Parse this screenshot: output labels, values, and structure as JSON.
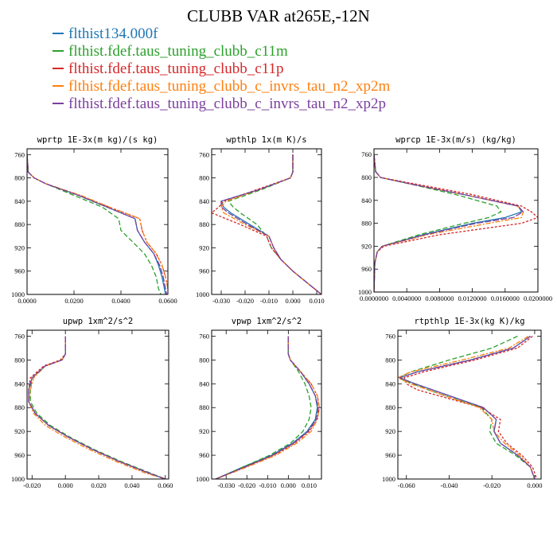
{
  "title": "CLUBB VAR at265E,-12N",
  "legend": [
    {
      "label": "flthist134.000f",
      "color": "#1f77b4"
    },
    {
      "label": "flthist.fdef.taus_tuning_clubb_c11m",
      "color": "#2ca02c"
    },
    {
      "label": "flthist.fdef.taus_tuning_clubb_c11p",
      "color": "#d62728"
    },
    {
      "label": "flthist.fdef.taus_tuning_clubb_c_invrs_tau_n2_xp2m",
      "color": "#ff7f0e"
    },
    {
      "label": "flthist.fdef.taus_tuning_clubb_c_invrs_tau_n2_xp2p",
      "color": "#7b3f9e"
    }
  ],
  "chart_data": [
    {
      "type": "line",
      "title": "wprtp  1E-3x(m kg)/(s kg)",
      "xlim": [
        0.0,
        0.06
      ],
      "ylim": [
        1000,
        750
      ],
      "xticks": [
        0.0,
        0.02,
        0.04,
        0.06
      ],
      "xtick_labels": [
        "0.0000",
        "0.0200",
        "0.0400",
        "0.0600"
      ],
      "yticks": [
        760,
        800,
        840,
        880,
        920,
        960,
        1000
      ],
      "y": [
        760,
        790,
        800,
        810,
        830,
        850,
        870,
        890,
        910,
        930,
        950,
        970,
        990,
        1000
      ],
      "series": [
        {
          "color": "#1f77b4",
          "x": [
            0.0,
            0.0005,
            0.003,
            0.008,
            0.022,
            0.034,
            0.046,
            0.047,
            0.05,
            0.054,
            0.056,
            0.0575,
            0.0585,
            0.059
          ]
        },
        {
          "color": "#2ca02c",
          "x": [
            0.0,
            0.0005,
            0.003,
            0.008,
            0.02,
            0.032,
            0.039,
            0.04,
            0.045,
            0.05,
            0.053,
            0.055,
            0.056,
            0.057
          ]
        },
        {
          "color": "#d62728",
          "x": [
            0.0,
            0.0005,
            0.003,
            0.008,
            0.022,
            0.035,
            0.048,
            0.049,
            0.051,
            0.055,
            0.0575,
            0.059,
            0.06,
            0.0605
          ]
        },
        {
          "color": "#ff7f0e",
          "x": [
            0.0,
            0.0005,
            0.003,
            0.008,
            0.023,
            0.035,
            0.048,
            0.049,
            0.051,
            0.055,
            0.0575,
            0.059,
            0.06,
            0.0605
          ]
        },
        {
          "color": "#7b3f9e",
          "x": [
            0.0,
            0.0005,
            0.003,
            0.008,
            0.022,
            0.034,
            0.046,
            0.047,
            0.05,
            0.054,
            0.0565,
            0.058,
            0.059,
            0.0595
          ]
        }
      ]
    },
    {
      "type": "line",
      "title": "wpthlp  1x(m K)/s",
      "xlim": [
        -0.034,
        0.012
      ],
      "ylim": [
        1000,
        750
      ],
      "xticks": [
        -0.03,
        -0.02,
        -0.01,
        0.0,
        0.01
      ],
      "xtick_labels": [
        "-0.030",
        "-0.020",
        "-0.010",
        "0.000",
        "0.010"
      ],
      "yticks": [
        760,
        800,
        840,
        880,
        920,
        960,
        1000
      ],
      "y": [
        760,
        790,
        800,
        820,
        840,
        850,
        860,
        880,
        900,
        920,
        940,
        960,
        980,
        1000
      ],
      "series": [
        {
          "color": "#1f77b4",
          "x": [
            0.0,
            0.0,
            -0.001,
            -0.014,
            -0.03,
            -0.029,
            -0.026,
            -0.018,
            -0.01,
            -0.008,
            -0.005,
            0.0,
            0.006,
            0.012
          ]
        },
        {
          "color": "#2ca02c",
          "x": [
            0.0,
            0.0,
            -0.001,
            -0.013,
            -0.027,
            -0.025,
            -0.022,
            -0.015,
            -0.011,
            -0.009,
            -0.005,
            0.0,
            0.006,
            0.012
          ]
        },
        {
          "color": "#d62728",
          "x": [
            0.0,
            0.0,
            -0.001,
            -0.015,
            -0.029,
            -0.031,
            -0.034,
            -0.022,
            -0.011,
            -0.009,
            -0.005,
            0.0,
            0.006,
            0.012
          ]
        },
        {
          "color": "#ff7f0e",
          "x": [
            0.0,
            0.0,
            -0.001,
            -0.014,
            -0.028,
            -0.03,
            -0.029,
            -0.02,
            -0.01,
            -0.008,
            -0.005,
            0.0,
            0.006,
            0.012
          ]
        },
        {
          "color": "#7b3f9e",
          "x": [
            0.0,
            0.0,
            -0.001,
            -0.014,
            -0.03,
            -0.03,
            -0.027,
            -0.019,
            -0.01,
            -0.008,
            -0.005,
            0.0,
            0.006,
            0.012
          ]
        }
      ]
    },
    {
      "type": "line",
      "title": "wprcp  1E-3x(m/s) (kg/kg)",
      "xlim": [
        0.0,
        0.02
      ],
      "ylim": [
        1000,
        750
      ],
      "xticks": [
        0.0,
        0.004,
        0.008,
        0.012,
        0.016,
        0.02
      ],
      "xtick_labels": [
        "0.0000000",
        "0.0040000",
        "0.0080000",
        "0.0120000",
        "0.0160000",
        "0.0200000"
      ],
      "yticks": [
        760,
        800,
        840,
        880,
        920,
        960,
        1000
      ],
      "y": [
        760,
        790,
        800,
        810,
        830,
        850,
        860,
        870,
        880,
        900,
        920,
        930,
        950,
        1000
      ],
      "series": [
        {
          "color": "#1f77b4",
          "x": [
            0.0,
            0.0002,
            0.0008,
            0.004,
            0.011,
            0.0176,
            0.018,
            0.016,
            0.012,
            0.006,
            0.001,
            0.0004,
            0.0001,
            0.0
          ]
        },
        {
          "color": "#2ca02c",
          "x": [
            0.0,
            0.0002,
            0.0008,
            0.004,
            0.01,
            0.015,
            0.0155,
            0.014,
            0.011,
            0.0055,
            0.001,
            0.0004,
            0.0001,
            0.0
          ]
        },
        {
          "color": "#d62728",
          "x": [
            0.0,
            0.0002,
            0.0008,
            0.0045,
            0.012,
            0.018,
            0.0192,
            0.02,
            0.018,
            0.008,
            0.0012,
            0.0004,
            0.0001,
            0.0
          ]
        },
        {
          "color": "#ff7f0e",
          "x": [
            0.0,
            0.0002,
            0.0008,
            0.004,
            0.011,
            0.0175,
            0.0182,
            0.018,
            0.014,
            0.0065,
            0.0011,
            0.0004,
            0.0001,
            0.0
          ]
        },
        {
          "color": "#7b3f9e",
          "x": [
            0.0,
            0.0002,
            0.0008,
            0.004,
            0.011,
            0.0176,
            0.0182,
            0.017,
            0.0125,
            0.0062,
            0.001,
            0.0004,
            0.0001,
            0.0
          ]
        }
      ]
    },
    {
      "type": "line",
      "title": "upwp  1xm^2/s^2",
      "xlim": [
        -0.023,
        0.062
      ],
      "ylim": [
        1000,
        750
      ],
      "xticks": [
        -0.02,
        0.0,
        0.02,
        0.04,
        0.06
      ],
      "xtick_labels": [
        "-0.020",
        "0.000",
        "0.020",
        "0.040",
        "0.060"
      ],
      "yticks": [
        760,
        800,
        840,
        880,
        920,
        960,
        1000
      ],
      "y": [
        760,
        790,
        800,
        810,
        830,
        850,
        870,
        890,
        910,
        930,
        950,
        970,
        990,
        1000
      ],
      "series": [
        {
          "color": "#1f77b4",
          "x": [
            0.0,
            0.0,
            -0.002,
            -0.012,
            -0.02,
            -0.022,
            -0.022,
            -0.018,
            -0.01,
            0.002,
            0.016,
            0.032,
            0.05,
            0.06
          ]
        },
        {
          "color": "#2ca02c",
          "x": [
            0.0,
            0.0,
            -0.002,
            -0.012,
            -0.02,
            -0.021,
            -0.021,
            -0.017,
            -0.009,
            0.003,
            0.017,
            0.033,
            0.051,
            0.06
          ]
        },
        {
          "color": "#d62728",
          "x": [
            0.0,
            0.0,
            -0.003,
            -0.013,
            -0.021,
            -0.022,
            -0.022,
            -0.018,
            -0.01,
            0.002,
            0.016,
            0.032,
            0.05,
            0.06
          ]
        },
        {
          "color": "#ff7f0e",
          "x": [
            0.0,
            0.0,
            -0.002,
            -0.012,
            -0.019,
            -0.021,
            -0.022,
            -0.019,
            -0.012,
            0.0,
            0.014,
            0.03,
            0.048,
            0.06
          ]
        },
        {
          "color": "#7b3f9e",
          "x": [
            0.0,
            0.0,
            -0.002,
            -0.012,
            -0.02,
            -0.022,
            -0.022,
            -0.018,
            -0.01,
            0.002,
            0.016,
            0.032,
            0.05,
            0.06
          ]
        }
      ]
    },
    {
      "type": "line",
      "title": "vpwp  1xm^2/s^2",
      "xlim": [
        -0.037,
        0.016
      ],
      "ylim": [
        1000,
        750
      ],
      "xticks": [
        -0.03,
        -0.02,
        -0.01,
        0.0,
        0.01
      ],
      "xtick_labels": [
        "-0.030",
        "-0.020",
        "-0.010",
        "0.000",
        "0.010"
      ],
      "yticks": [
        760,
        800,
        840,
        880,
        920,
        960,
        1000
      ],
      "y": [
        760,
        790,
        800,
        820,
        840,
        860,
        880,
        900,
        920,
        940,
        960,
        980,
        1000
      ],
      "series": [
        {
          "color": "#1f77b4",
          "x": [
            0.0,
            0.0,
            0.001,
            0.006,
            0.01,
            0.013,
            0.014,
            0.013,
            0.009,
            0.002,
            -0.008,
            -0.022,
            -0.035
          ]
        },
        {
          "color": "#2ca02c",
          "x": [
            0.0,
            0.0,
            0.001,
            0.005,
            0.008,
            0.01,
            0.011,
            0.01,
            0.007,
            0.001,
            -0.009,
            -0.022,
            -0.035
          ]
        },
        {
          "color": "#d62728",
          "x": [
            0.0,
            0.0,
            0.001,
            0.006,
            0.011,
            0.014,
            0.015,
            0.014,
            0.01,
            0.003,
            -0.007,
            -0.021,
            -0.035
          ]
        },
        {
          "color": "#ff7f0e",
          "x": [
            0.0,
            0.0,
            0.001,
            0.006,
            0.011,
            0.014,
            0.015,
            0.014,
            0.011,
            0.004,
            -0.006,
            -0.02,
            -0.035
          ]
        },
        {
          "color": "#7b3f9e",
          "x": [
            0.0,
            0.0,
            0.001,
            0.006,
            0.01,
            0.013,
            0.0145,
            0.0135,
            0.0095,
            0.0025,
            -0.0075,
            -0.021,
            -0.035
          ]
        }
      ]
    },
    {
      "type": "line",
      "title": "rtpthlp  1E-3x(kg K)/kg",
      "xlim": [
        -0.064,
        0.003
      ],
      "ylim": [
        1000,
        750
      ],
      "xticks": [
        -0.06,
        -0.04,
        -0.02,
        0.0
      ],
      "xtick_labels": [
        "-0.060",
        "-0.040",
        "-0.020",
        "0.000"
      ],
      "yticks": [
        760,
        800,
        840,
        880,
        920,
        960,
        1000
      ],
      "y": [
        760,
        780,
        800,
        820,
        830,
        840,
        850,
        860,
        880,
        900,
        920,
        940,
        960,
        980,
        1000
      ],
      "series": [
        {
          "color": "#1f77b4",
          "x": [
            -0.002,
            -0.01,
            -0.03,
            -0.055,
            -0.063,
            -0.056,
            -0.048,
            -0.04,
            -0.024,
            -0.018,
            -0.019,
            -0.016,
            -0.008,
            -0.002,
            0.0
          ]
        },
        {
          "color": "#2ca02c",
          "x": [
            -0.008,
            -0.02,
            -0.04,
            -0.058,
            -0.064,
            -0.057,
            -0.05,
            -0.042,
            -0.025,
            -0.02,
            -0.021,
            -0.018,
            -0.009,
            -0.002,
            0.0
          ]
        },
        {
          "color": "#d62728",
          "x": [
            -0.001,
            -0.008,
            -0.028,
            -0.052,
            -0.061,
            -0.06,
            -0.055,
            -0.045,
            -0.025,
            -0.016,
            -0.017,
            -0.013,
            -0.006,
            -0.001,
            0.001
          ]
        },
        {
          "color": "#ff7f0e",
          "x": [
            -0.003,
            -0.012,
            -0.034,
            -0.058,
            -0.064,
            -0.058,
            -0.05,
            -0.042,
            -0.026,
            -0.02,
            -0.019,
            -0.014,
            -0.007,
            -0.002,
            0.0
          ]
        },
        {
          "color": "#7b3f9e",
          "x": [
            -0.002,
            -0.01,
            -0.03,
            -0.055,
            -0.063,
            -0.056,
            -0.048,
            -0.04,
            -0.024,
            -0.018,
            -0.019,
            -0.016,
            -0.008,
            -0.002,
            0.0
          ]
        }
      ]
    }
  ]
}
